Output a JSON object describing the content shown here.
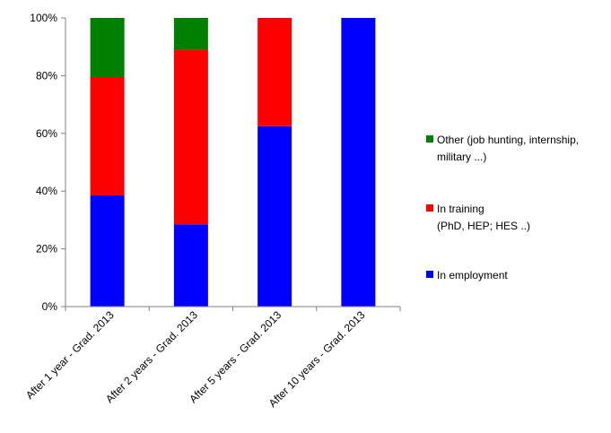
{
  "chart_data": {
    "type": "bar",
    "stacked": true,
    "categories": [
      "After 1 year - Grad. 2013",
      "After 2 years - Grad. 2013",
      "After 5 years - Grad. 2013",
      "After 10 years - Grad. 2013"
    ],
    "series": [
      {
        "name": "In employment",
        "legend_lines": [
          "In employment"
        ],
        "color": "#0000ff",
        "values": [
          38.5,
          28.5,
          62.5,
          100
        ]
      },
      {
        "name": "In training (PhD, HEP; HES ..)",
        "legend_lines": [
          "In training",
          "(PhD, HEP; HES ..)"
        ],
        "color": "#ff0000",
        "values": [
          41,
          60.5,
          37.5,
          0
        ]
      },
      {
        "name": "Other (job hunting, internship, military ...)",
        "legend_lines": [
          "Other (job hunting, internship,",
          "military ...)"
        ],
        "color": "#008000",
        "values": [
          20.5,
          11,
          0,
          0
        ]
      }
    ],
    "y_ticks": [
      "0%",
      "20%",
      "40%",
      "60%",
      "80%",
      "100%"
    ],
    "ylim": [
      0,
      100
    ],
    "grid": false,
    "legend_position": "right",
    "title": "",
    "xlabel": "",
    "ylabel": ""
  }
}
